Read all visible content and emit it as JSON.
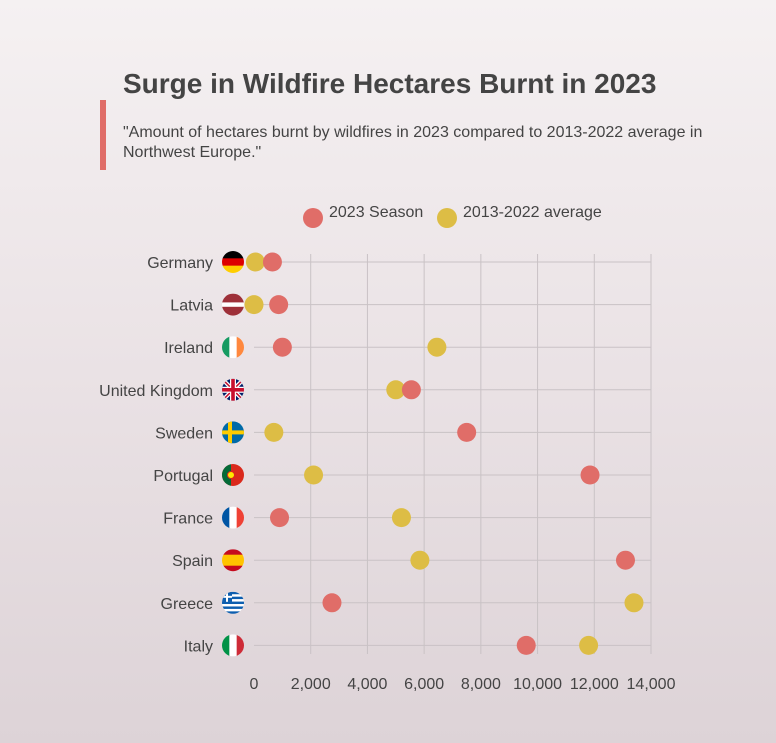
{
  "title": "Surge in Wildfire Hectares Burnt in 2023",
  "subtitle": "\"Amount of hectares burnt by wildfires in 2023 compared to 2013-2022 average in Northwest Europe.\"",
  "colors": {
    "season_2023": "#e06d68",
    "average": "#ddbd45",
    "accent": "#e06d68",
    "grid": "#c9c2c5",
    "text": "#444444"
  },
  "legend": [
    {
      "label": "2023 Season",
      "color": "#e06d68"
    },
    {
      "label": "2013-2022 average",
      "color": "#ddbd45"
    }
  ],
  "chart_data": {
    "type": "scatter",
    "categories": [
      "Germany",
      "Latvia",
      "Ireland",
      "United Kingdom",
      "Sweden",
      "Portugal",
      "France",
      "Spain",
      "Greece",
      "Italy"
    ],
    "flag_icons": [
      "germany-flag-icon",
      "latvia-flag-icon",
      "ireland-flag-icon",
      "uk-flag-icon",
      "sweden-flag-icon",
      "portugal-flag-icon",
      "france-flag-icon",
      "spain-flag-icon",
      "greece-flag-icon",
      "italy-flag-icon"
    ],
    "series": [
      {
        "name": "2023 Season",
        "values": [
          650,
          870,
          1000,
          5550,
          7500,
          11850,
          900,
          13100,
          2750,
          9600
        ]
      },
      {
        "name": "2013-2022 average",
        "values": [
          50,
          0,
          6450,
          5000,
          700,
          2100,
          5200,
          5850,
          13400,
          11800
        ]
      }
    ],
    "xlim": [
      0,
      14000
    ],
    "xticks": [
      0,
      2000,
      4000,
      6000,
      8000,
      10000,
      12000,
      14000
    ],
    "xtick_labels": [
      "0",
      "2,000",
      "4,000",
      "6,000",
      "8,000",
      "10,000",
      "12,000",
      "14,000"
    ],
    "grid": true,
    "legend_position": "top"
  }
}
